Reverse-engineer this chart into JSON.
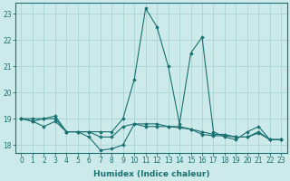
{
  "xlabel": "Humidex (Indice chaleur)",
  "background_color": "#cceaea",
  "grid_color": "#aad4d4",
  "line_color": "#1a7070",
  "x": [
    0,
    1,
    2,
    3,
    4,
    5,
    6,
    7,
    8,
    9,
    10,
    11,
    12,
    13,
    14,
    15,
    16,
    17,
    18,
    19,
    20,
    21,
    22,
    23
  ],
  "lines": [
    [
      19.0,
      19.0,
      19.0,
      19.0,
      18.5,
      18.5,
      18.5,
      18.5,
      18.5,
      19.0,
      20.5,
      23.2,
      22.5,
      21.0,
      18.8,
      21.5,
      22.1,
      18.5,
      18.3,
      18.2,
      18.5,
      18.7,
      18.2,
      18.2
    ],
    [
      19.0,
      18.9,
      19.0,
      19.1,
      18.5,
      18.5,
      18.5,
      18.3,
      18.3,
      18.7,
      18.8,
      18.8,
      18.8,
      18.7,
      18.7,
      18.6,
      18.5,
      18.4,
      18.4,
      18.3,
      18.3,
      18.5,
      18.2,
      18.2
    ],
    [
      19.0,
      18.9,
      18.7,
      18.9,
      18.5,
      18.5,
      18.3,
      17.8,
      17.85,
      18.0,
      18.8,
      18.7,
      18.7,
      18.7,
      18.65,
      18.6,
      18.4,
      18.35,
      18.35,
      18.3,
      18.3,
      18.45,
      18.2,
      18.2
    ]
  ],
  "ylim": [
    17.7,
    23.4
  ],
  "yticks": [
    18,
    19,
    20,
    21,
    22,
    23
  ],
  "xlim": [
    -0.5,
    23.5
  ],
  "tick_fontsize": 5.5,
  "label_fontsize": 6.5
}
